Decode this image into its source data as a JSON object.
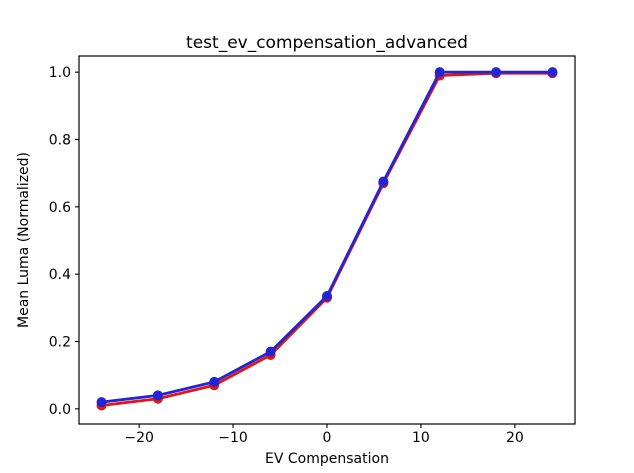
{
  "figure": {
    "background": "#ffffff",
    "border_color": "#000000"
  },
  "chart_data": {
    "type": "line",
    "title": "test_ev_compensation_advanced",
    "xlabel": "EV Compensation",
    "ylabel": "Mean Luma (Normalized)",
    "x": [
      -24,
      -18,
      -12,
      -6,
      0,
      6,
      12,
      18,
      24
    ],
    "series": [
      {
        "name": "red",
        "color": "#e01717",
        "marker": "circle",
        "values": [
          0.01,
          0.03,
          0.07,
          0.16,
          0.33,
          0.67,
          0.99,
          0.997,
          0.997
        ]
      },
      {
        "name": "blue",
        "color": "#2424d2",
        "marker": "circle",
        "values": [
          0.02,
          0.04,
          0.08,
          0.17,
          0.335,
          0.675,
          1.0,
          1.0,
          1.0
        ]
      }
    ],
    "xticks": [
      -20,
      -10,
      0,
      10,
      20
    ],
    "xtick_labels": [
      "−20",
      "−10",
      "0",
      "10",
      "20"
    ],
    "yticks": [
      0.0,
      0.2,
      0.4,
      0.6,
      0.8,
      1.0
    ],
    "ytick_labels": [
      "0.0",
      "0.2",
      "0.4",
      "0.6",
      "0.8",
      "1.0"
    ],
    "xlim": [
      -26.4,
      26.4
    ],
    "ylim": [
      -0.045,
      1.048
    ],
    "grid": false,
    "legend": null
  }
}
